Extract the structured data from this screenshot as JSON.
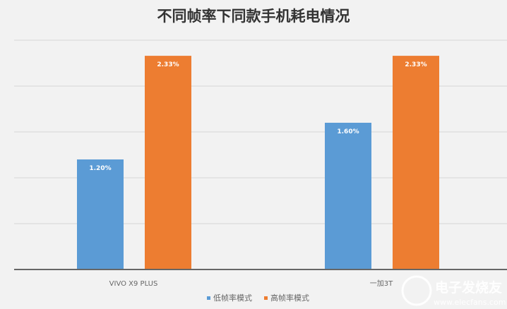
{
  "chart_data": {
    "type": "bar",
    "title": "不同帧率下同款手机耗电情况",
    "categories": [
      "VIVO X9 PLUS",
      "一加3T"
    ],
    "series": [
      {
        "name": "低帧率模式",
        "values": [
          1.2,
          1.6
        ],
        "labels": [
          "1.20%",
          "1.60%"
        ],
        "color": "#5b9bd5"
      },
      {
        "name": "高帧率模式",
        "values": [
          2.33,
          2.33
        ],
        "labels": [
          "2.33%",
          "2.33%"
        ],
        "color": "#ed7d31"
      }
    ],
    "xlabel": "",
    "ylabel": "",
    "ylim": [
      0,
      2.5
    ],
    "grid": true,
    "y_tick_labels_shown": false,
    "legend": "bottom"
  },
  "watermark": {
    "name": "电子发烧友",
    "url": "www.elecfans.com"
  }
}
